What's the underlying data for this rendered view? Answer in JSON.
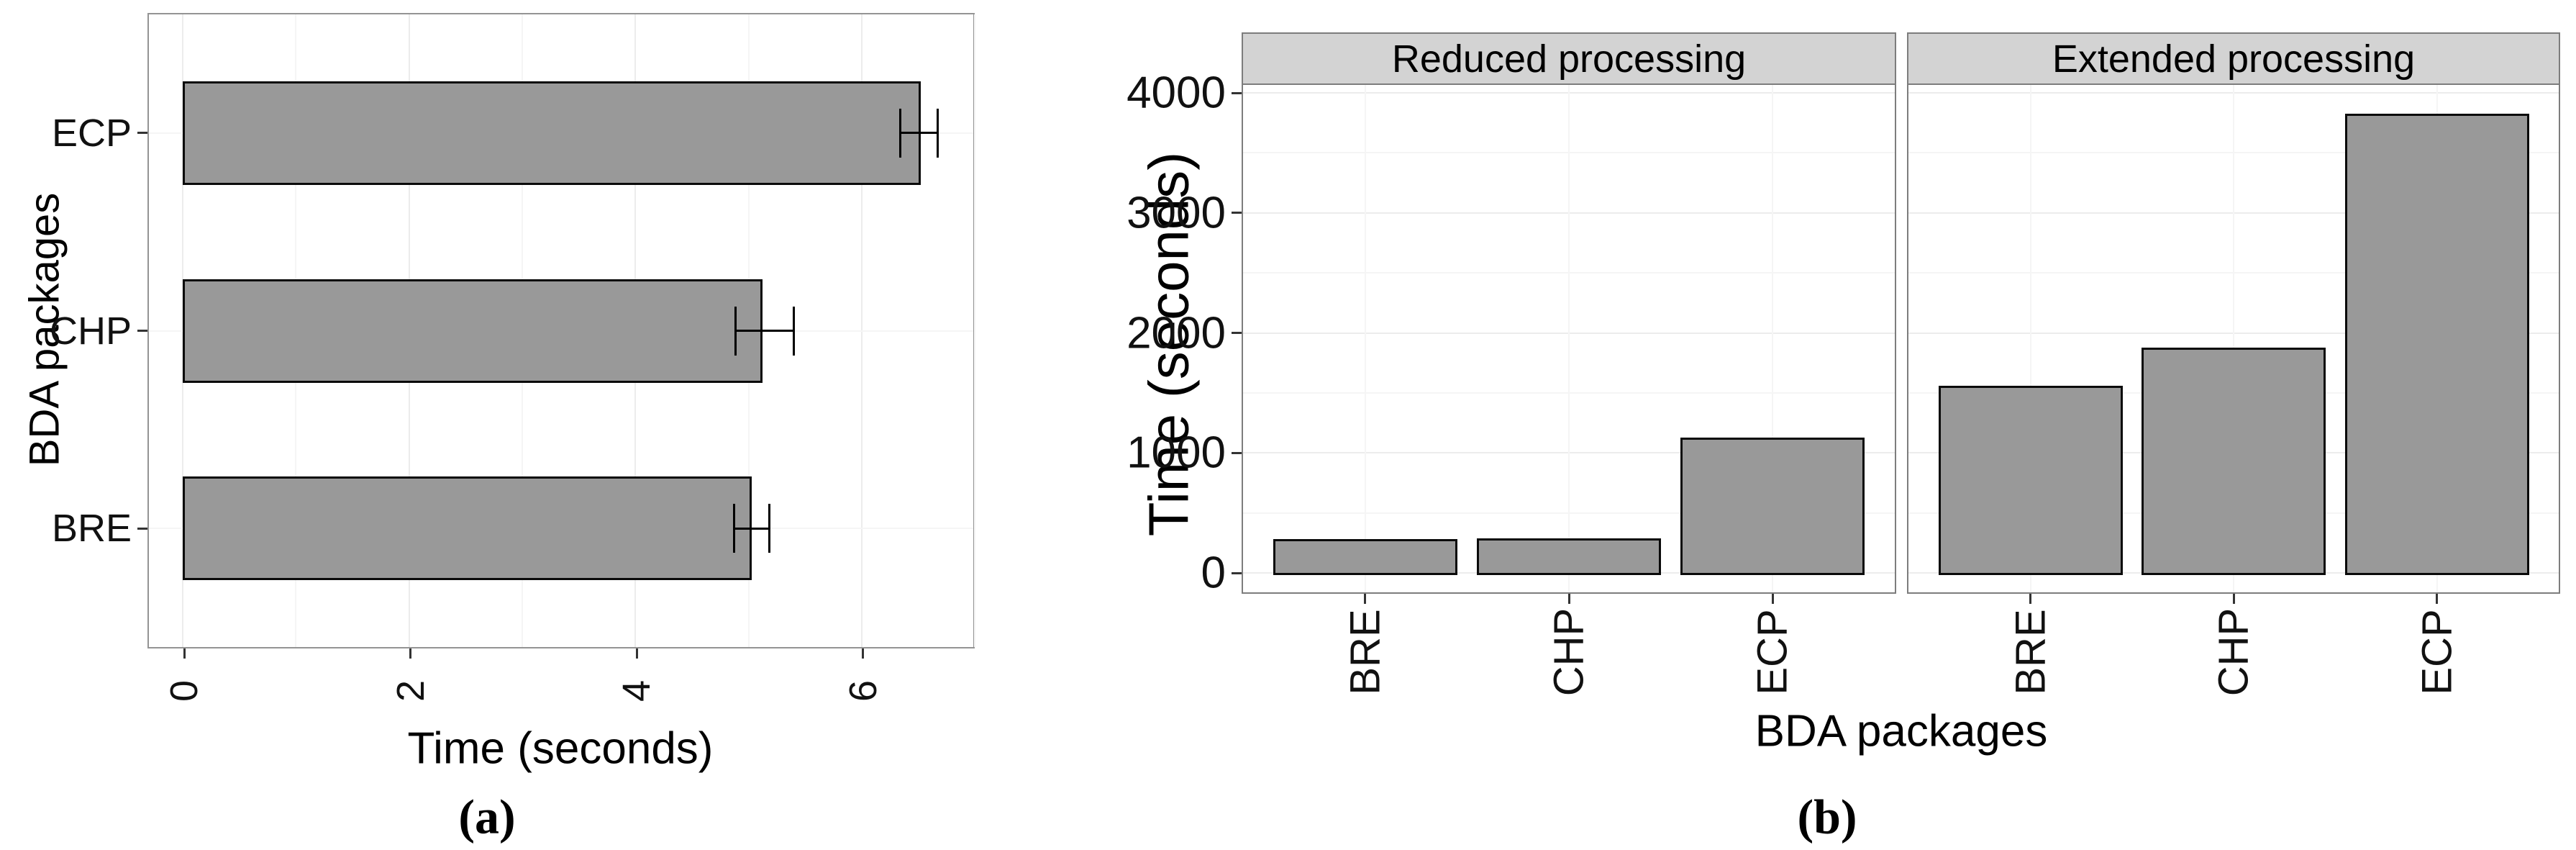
{
  "figure": {
    "caption_a": "(a)",
    "caption_b": "(b)"
  },
  "chart_data": [
    {
      "type": "bar",
      "orientation": "horizontal",
      "title": "",
      "xlabel": "Time (seconds)",
      "ylabel": "BDA packages",
      "categories": [
        "BRE",
        "CHP",
        "ECP"
      ],
      "values": [
        5.0,
        5.1,
        6.5
      ],
      "error_low": [
        4.86,
        4.87,
        6.33
      ],
      "error_high": [
        5.17,
        5.39,
        6.66
      ],
      "xlim": [
        0,
        7
      ],
      "xticks": [
        0,
        2,
        4,
        6
      ],
      "grid": "on",
      "legend": "none"
    },
    {
      "type": "bar",
      "orientation": "vertical",
      "title": "",
      "xlabel": "BDA packages",
      "ylabel": "Time (seconds)",
      "categories": [
        "BRE",
        "CHP",
        "ECP"
      ],
      "facets": [
        {
          "label": "Reduced processing",
          "values": [
            280,
            290,
            1130
          ]
        },
        {
          "label": "Extended processing",
          "values": [
            1560,
            1875,
            3825
          ]
        }
      ],
      "ylim": [
        0,
        4000
      ],
      "yticks": [
        0,
        1000,
        2000,
        3000,
        4000
      ],
      "grid": "on",
      "legend": "none"
    }
  ],
  "colors": {
    "bar_fill": "#999999",
    "bar_stroke": "#0a0a0a",
    "strip_fill": "#d3d3d3",
    "panel_border": "#7d7d7d",
    "grid_major": "#ececec",
    "grid_minor": "#f5f5f5",
    "text": "#000000"
  }
}
